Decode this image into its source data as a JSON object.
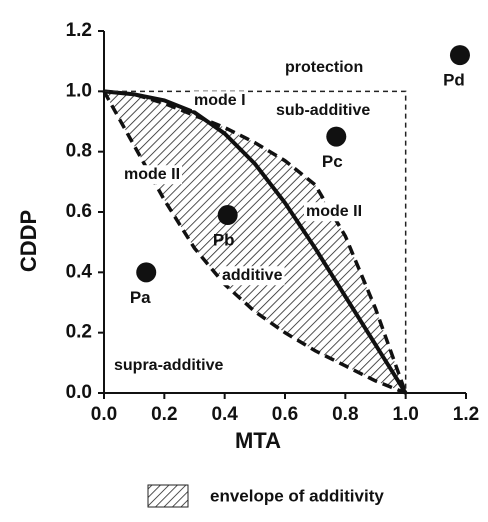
{
  "chart_data": {
    "type": "isobologram",
    "xlabel": "MTA",
    "ylabel": "CDDP",
    "xlim": [
      0,
      1.2
    ],
    "ylim": [
      0,
      1.2
    ],
    "xticks": [
      {
        "value": 0,
        "label": "0.0"
      },
      {
        "value": 0.2,
        "label": "0.2"
      },
      {
        "value": 0.4,
        "label": "0.4"
      },
      {
        "value": 0.6,
        "label": "0.6"
      },
      {
        "value": 0.8,
        "label": "0.8"
      },
      {
        "value": 1,
        "label": "1.0"
      },
      {
        "value": 1.2,
        "label": "1.2"
      }
    ],
    "yticks": [
      {
        "value": 0,
        "label": "0.0"
      },
      {
        "value": 0.2,
        "label": "0.2"
      },
      {
        "value": 0.4,
        "label": "0.4"
      },
      {
        "value": 0.6,
        "label": "0.6"
      },
      {
        "value": 0.8,
        "label": "0.8"
      },
      {
        "value": 1,
        "label": "1.0"
      },
      {
        "value": 1.2,
        "label": "1.2"
      }
    ],
    "points": {
      "labels": [
        "Pa",
        "Pb",
        "Pc",
        "Pd"
      ],
      "x": [
        0.14,
        0.41,
        0.77,
        1.18
      ],
      "values": [
        0.4,
        0.59,
        0.85,
        1.12
      ],
      "color": "#111111"
    },
    "envelope": {
      "name": "envelope of additivity",
      "x": [
        0,
        0.1,
        0.2,
        0.3,
        0.4,
        0.5,
        0.6,
        0.7,
        0.8,
        0.9,
        1.0
      ],
      "upper": [
        1,
        0.99,
        0.96,
        0.92,
        0.88,
        0.83,
        0.77,
        0.69,
        0.52,
        0.28,
        0
      ],
      "lower": [
        1,
        0.82,
        0.64,
        0.48,
        0.36,
        0.27,
        0.2,
        0.14,
        0.09,
        0.04,
        0
      ]
    },
    "mode_curve": {
      "x": [
        0,
        0.1,
        0.2,
        0.3,
        0.4,
        0.5,
        0.6,
        0.7,
        0.8,
        0.9,
        1.0
      ],
      "values": [
        1,
        0.99,
        0.97,
        0.93,
        0.86,
        0.76,
        0.63,
        0.48,
        0.32,
        0.16,
        0
      ]
    },
    "annotations": [
      "protection",
      "sub-additive",
      "mode I",
      "mode II",
      "mode II",
      "additive",
      "supra-additive"
    ]
  }
}
